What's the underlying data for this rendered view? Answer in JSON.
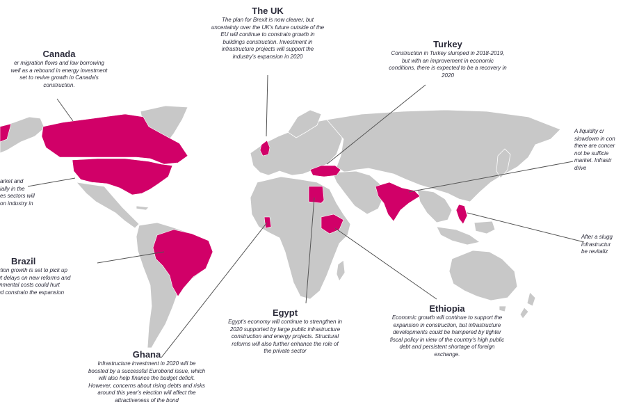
{
  "highlight_color": "#d10068",
  "land_color": "#c8c8c8",
  "border_color": "#ffffff",
  "connector_color": "#555555",
  "countries": [
    {
      "name": "The UK",
      "lines": [
        "The plan for Brexit is now clearer, but",
        "uncertainty over the UK's future outside of the",
        "EU will continue to constrain growth in",
        "buildings construction. Investment in",
        "infrastructure projects will support the",
        "industry's expansion in 2020"
      ]
    },
    {
      "name": "Turkey",
      "lines": [
        "Construction in Turkey slumped in 2018-2019,",
        "but with an improvement in economic",
        "conditions, there is expected to be a recovery in",
        "2020"
      ]
    },
    {
      "name": "Canada",
      "lines": [
        "er migration flows and low borrowing",
        "well as a rebound in energy investment",
        "set to revive growth in Canada's",
        "construction."
      ]
    },
    {
      "name": "Brazil",
      "lines": [
        "uction growth is set to pick up",
        "but delays on new reforms and",
        "ronmental costs could hurt",
        "and constrain the expansion"
      ]
    },
    {
      "name": "Egypt",
      "lines": [
        "Egypt's economy will continue to strengthen in",
        "2020 supported by large public infrastructure",
        "construction and energy projects. Structural",
        "reforms will also further enhance the role of",
        "the private sector"
      ]
    },
    {
      "name": "Ethiopia",
      "lines": [
        "Economic growth will continue to support the",
        "expansion in construction, but infrastructure",
        "developments could be hampered by tighter",
        "fiscal policy in view of the country's high public",
        "debt and persistent shortage of foreign",
        "exchange."
      ]
    },
    {
      "name": "Ghana",
      "lines": [
        "Infrastructure investment in 2020 will be",
        "boosted by a successful Eurobond issue, which",
        "will also help finance the budget deficit.",
        "However, concerns about rising debts and risks",
        "around this year's election will affect the",
        "attractiveness of the bond"
      ]
    }
  ],
  "partial_notes": [
    {
      "name": "usa-note",
      "lines": [
        "arket and",
        "ially in the",
        "es sectors will",
        "on industry in"
      ]
    },
    {
      "name": "india-note",
      "lines": [
        "A liquidity cr",
        "slowdown in con",
        "there are concer",
        "not be sufficie",
        "market. Infrastr",
        "drive"
      ]
    },
    {
      "name": "philippines-note",
      "lines": [
        "After a slugg",
        "infrastructur",
        "be revitaliz"
      ]
    }
  ]
}
